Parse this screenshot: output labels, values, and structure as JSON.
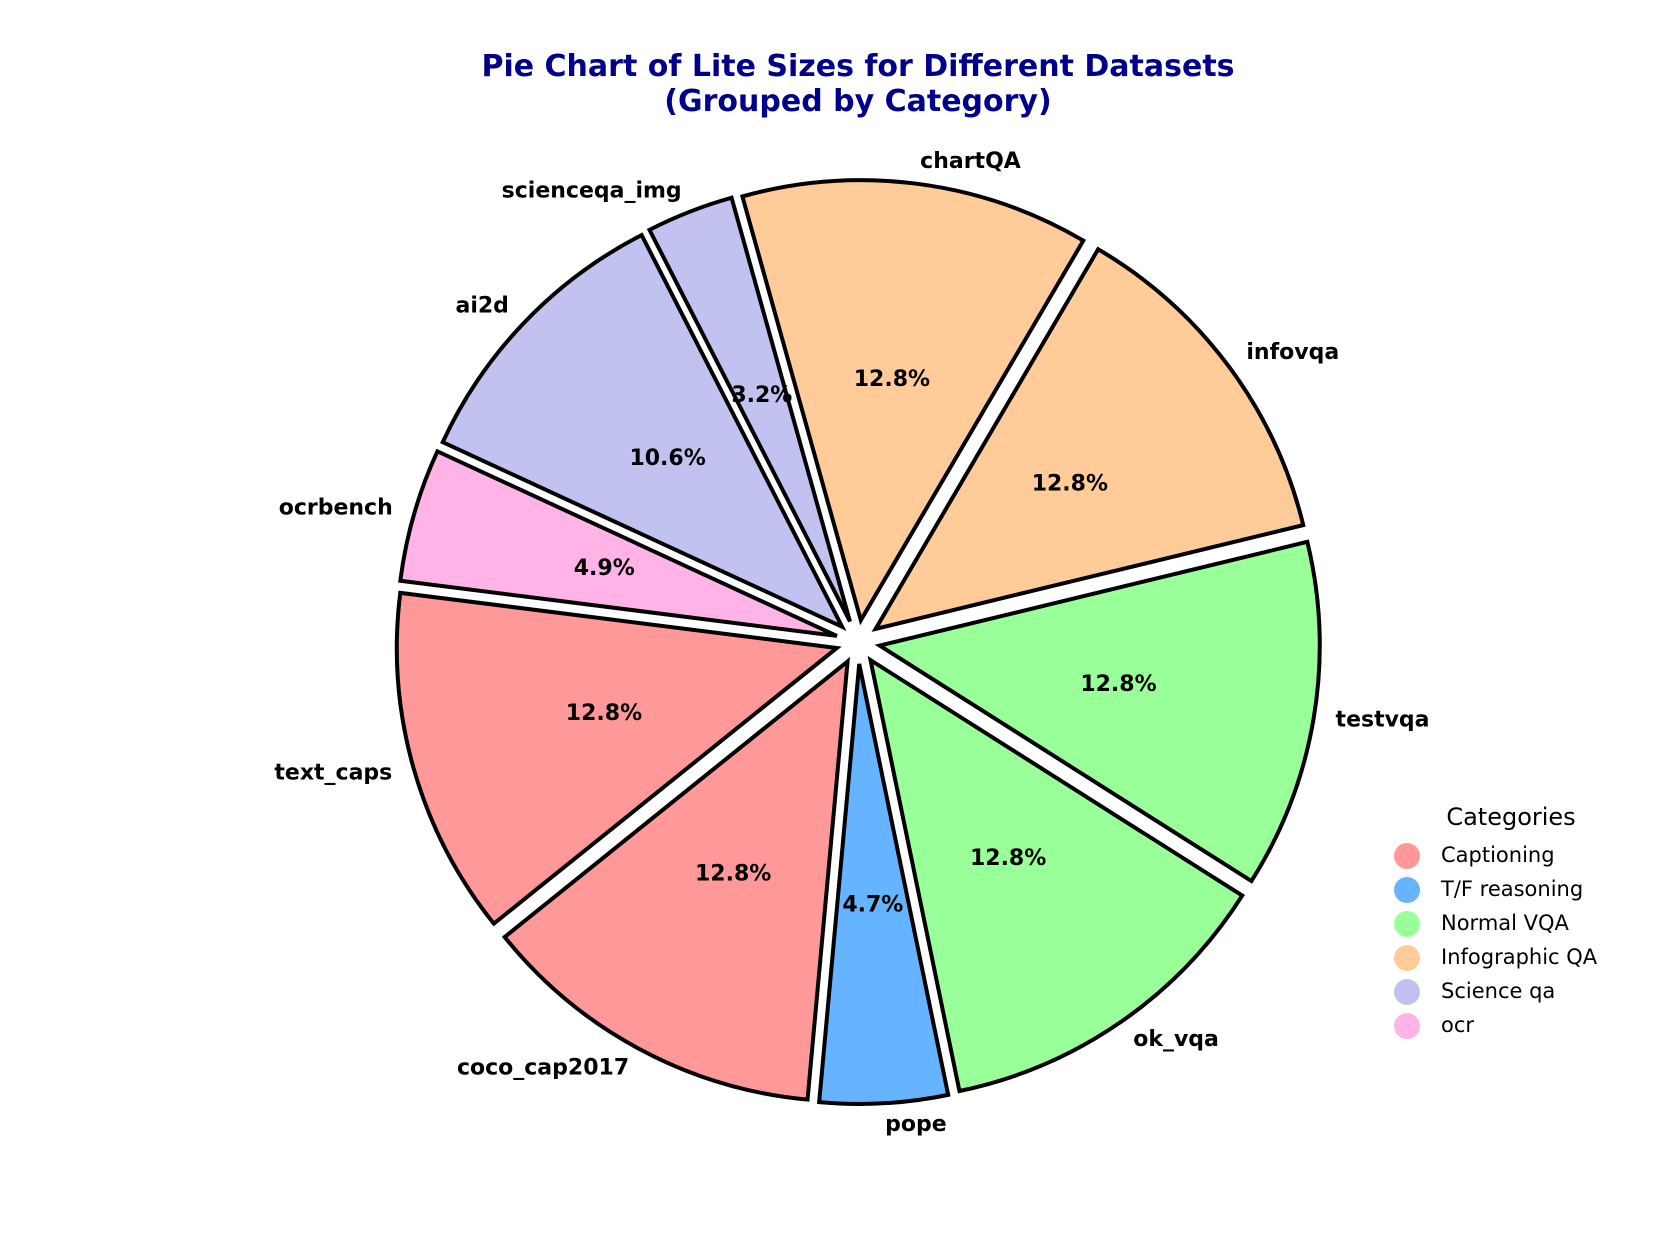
{
  "chart_data": {
    "type": "pie",
    "title": [
      "Pie Chart of Lite Sizes for Different Datasets",
      "(Grouped by Category)"
    ],
    "slices": [
      {
        "label": "text_caps",
        "percent": 12.8,
        "pct_text": "12.8%",
        "category": "Captioning"
      },
      {
        "label": "coco_cap2017",
        "percent": 12.8,
        "pct_text": "12.8%",
        "category": "Captioning"
      },
      {
        "label": "pope",
        "percent": 4.7,
        "pct_text": "4.7%",
        "category": "T/F reasoning"
      },
      {
        "label": "ok_vqa",
        "percent": 12.8,
        "pct_text": "12.8%",
        "category": "Normal VQA"
      },
      {
        "label": "testvqa",
        "percent": 12.8,
        "pct_text": "12.8%",
        "category": "Normal VQA"
      },
      {
        "label": "infovqa",
        "percent": 12.8,
        "pct_text": "12.8%",
        "category": "Infographic QA"
      },
      {
        "label": "chartQA",
        "percent": 12.8,
        "pct_text": "12.8%",
        "category": "Infographic QA"
      },
      {
        "label": "scienceqa_img",
        "percent": 3.2,
        "pct_text": "3.2%",
        "category": "Science qa"
      },
      {
        "label": "ai2d",
        "percent": 10.6,
        "pct_text": "10.6%",
        "category": "Science qa"
      },
      {
        "label": "ocrbench",
        "percent": 4.9,
        "pct_text": "4.9%",
        "category": "ocr"
      }
    ],
    "start_angle_deg": 172.8,
    "direction": "counterclockwise",
    "legend": {
      "title": "Categories",
      "placement": "lower-right",
      "items": [
        {
          "label": "Captioning",
          "color": "#ff9999"
        },
        {
          "label": "T/F reasoning",
          "color": "#66b3ff"
        },
        {
          "label": "Normal VQA",
          "color": "#99ff99"
        },
        {
          "label": "Infographic QA",
          "color": "#ffcc99"
        },
        {
          "label": "Science qa",
          "color": "#c2c2f0"
        },
        {
          "label": "ocr",
          "color": "#ffb3e6"
        }
      ]
    },
    "title_color": "#00008b",
    "edge_color": "#000000"
  }
}
